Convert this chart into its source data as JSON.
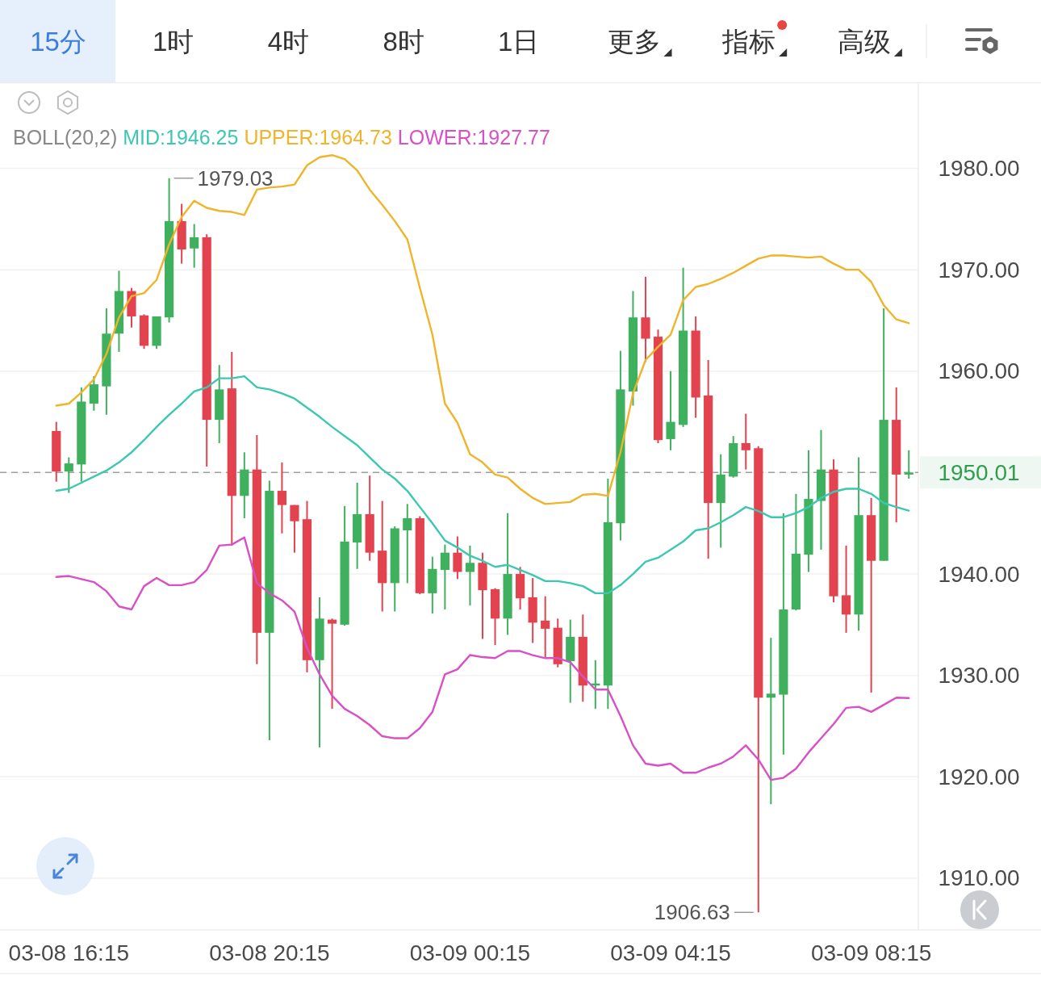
{
  "chart_data": {
    "type": "candlestick",
    "legend_title": "BOLL(20,2)",
    "legend": "top left",
    "grid": "y",
    "categories": [
      null,
      "03-08 16:15",
      null,
      null,
      null,
      null,
      null,
      null,
      null,
      null,
      null,
      null,
      null,
      null,
      null,
      null,
      null,
      "03-08 20:15",
      null,
      null,
      null,
      null,
      null,
      null,
      null,
      null,
      null,
      null,
      null,
      null,
      null,
      null,
      null,
      "03-09 00:15",
      null,
      null,
      null,
      null,
      null,
      null,
      null,
      null,
      null,
      null,
      null,
      null,
      null,
      null,
      null,
      "03-09 04:15",
      null,
      null,
      null,
      null,
      null,
      null,
      null,
      null,
      null,
      null,
      null,
      null,
      null,
      null,
      null,
      "03-09 08:15",
      null,
      null,
      null
    ],
    "ohlc": [
      [
        1954.1,
        1955.0,
        1949.1,
        1950.1
      ],
      [
        1950.1,
        1951.5,
        1948.0,
        1950.9
      ],
      [
        1950.8,
        1958.4,
        1949.1,
        1957.0
      ],
      [
        1956.8,
        1959.5,
        1956.1,
        1958.7
      ],
      [
        1958.5,
        1966.2,
        1955.7,
        1963.7
      ],
      [
        1963.7,
        1969.9,
        1961.9,
        1967.9
      ],
      [
        1967.9,
        1968.2,
        1964.3,
        1965.4
      ],
      [
        1965.5,
        1965.6,
        1962.2,
        1962.5
      ],
      [
        1962.5,
        1965.4,
        1962.2,
        1965.4
      ],
      [
        1965.3,
        1979.03,
        1964.8,
        1974.8
      ],
      [
        1974.8,
        1976.5,
        1970.6,
        1972.0
      ],
      [
        1972.1,
        1974.5,
        1970.2,
        1973.2
      ],
      [
        1973.2,
        1973.5,
        1950.6,
        1955.2
      ],
      [
        1955.2,
        1960.6,
        1952.9,
        1958.2
      ],
      [
        1958.3,
        1961.9,
        1942.8,
        1947.7
      ],
      [
        1947.7,
        1952.0,
        1945.5,
        1950.3
      ],
      [
        1950.3,
        1953.7,
        1931.1,
        1934.2
      ],
      [
        1934.2,
        1949.2,
        1923.6,
        1948.2
      ],
      [
        1948.2,
        1951.0,
        1944.0,
        1946.8
      ],
      [
        1946.8,
        1946.8,
        1942.1,
        1945.2
      ],
      [
        1945.4,
        1947.2,
        1930.3,
        1931.5
      ],
      [
        1931.5,
        1937.7,
        1922.9,
        1935.6
      ],
      [
        1935.5,
        1935.6,
        1926.7,
        1935.1
      ],
      [
        1935.0,
        1946.7,
        1934.9,
        1943.2
      ],
      [
        1943.1,
        1949.0,
        1940.5,
        1945.9
      ],
      [
        1945.9,
        1949.7,
        1941.3,
        1942.1
      ],
      [
        1942.3,
        1947.2,
        1936.3,
        1939.1
      ],
      [
        1939.1,
        1944.7,
        1936.3,
        1944.5
      ],
      [
        1944.3,
        1946.9,
        1939.1,
        1945.5
      ],
      [
        1945.5,
        1945.7,
        1938.0,
        1938.1
      ],
      [
        1938.1,
        1941.7,
        1936.1,
        1940.5
      ],
      [
        1940.4,
        1942.9,
        1936.5,
        1942.1
      ],
      [
        1942.1,
        1943.7,
        1939.5,
        1940.2
      ],
      [
        1940.2,
        1942.8,
        1936.9,
        1941.1
      ],
      [
        1941.1,
        1942.1,
        1933.6,
        1938.4
      ],
      [
        1938.5,
        1938.6,
        1933.0,
        1935.6
      ],
      [
        1935.6,
        1946.0,
        1934.0,
        1940.0
      ],
      [
        1940.0,
        1940.7,
        1936.5,
        1937.6
      ],
      [
        1937.7,
        1939.6,
        1933.2,
        1935.2
      ],
      [
        1935.4,
        1937.8,
        1931.8,
        1934.6
      ],
      [
        1934.7,
        1935.6,
        1930.8,
        1931.1
      ],
      [
        1931.4,
        1935.5,
        1927.3,
        1933.8
      ],
      [
        1933.8,
        1936.0,
        1927.4,
        1929.0
      ],
      [
        1929.0,
        1931.5,
        1926.7,
        1929.2
      ],
      [
        1929.0,
        1949.4,
        1926.7,
        1945.1
      ],
      [
        1945.0,
        1962.0,
        1943.3,
        1958.2
      ],
      [
        1958.0,
        1967.9,
        1956.6,
        1965.3
      ],
      [
        1965.3,
        1969.3,
        1960.9,
        1963.2
      ],
      [
        1963.4,
        1964.1,
        1952.9,
        1953.2
      ],
      [
        1953.3,
        1960.0,
        1952.2,
        1955.0
      ],
      [
        1954.7,
        1970.2,
        1954.5,
        1964.0
      ],
      [
        1964.0,
        1965.4,
        1955.4,
        1957.4
      ],
      [
        1957.6,
        1961.1,
        1941.5,
        1947.0
      ],
      [
        1947.0,
        1951.8,
        1942.6,
        1949.8
      ],
      [
        1949.6,
        1953.6,
        1949.5,
        1952.9
      ],
      [
        1952.9,
        1955.8,
        1950.3,
        1952.2
      ],
      [
        1952.4,
        1952.6,
        1906.63,
        1927.8
      ],
      [
        1927.8,
        1933.7,
        1917.3,
        1928.2
      ],
      [
        1928.1,
        1946.0,
        1922.2,
        1936.5
      ],
      [
        1936.5,
        1947.9,
        1936.4,
        1942.0
      ],
      [
        1941.9,
        1952.2,
        1940.2,
        1947.4
      ],
      [
        1947.2,
        1954.2,
        1942.4,
        1950.3
      ],
      [
        1950.3,
        1951.3,
        1937.2,
        1937.8
      ],
      [
        1937.9,
        1942.8,
        1934.2,
        1936.0
      ],
      [
        1936.0,
        1951.5,
        1934.4,
        1945.8
      ],
      [
        1945.8,
        1947.5,
        1928.3,
        1941.3
      ],
      [
        1941.3,
        1966.2,
        1941.3,
        1955.2
      ],
      [
        1955.2,
        1958.4,
        1945.1,
        1949.8
      ],
      [
        1949.8,
        1952.2,
        1949.4,
        1950.01
      ]
    ],
    "colors": [
      "#e2434f",
      "#3fb15e",
      "#3fb15e",
      "#3fb15e",
      "#3fb15e",
      "#3fb15e",
      "#e2434f",
      "#e2434f",
      "#3fb15e",
      "#3fb15e",
      "#e2434f",
      "#3fb15e",
      "#e2434f",
      "#3fb15e",
      "#e2434f",
      "#3fb15e",
      "#e2434f",
      "#3fb15e",
      "#e2434f",
      "#e2434f",
      "#e2434f",
      "#3fb15e",
      "#e2434f",
      "#3fb15e",
      "#3fb15e",
      "#e2434f",
      "#e2434f",
      "#3fb15e",
      "#3fb15e",
      "#e2434f",
      "#3fb15e",
      "#3fb15e",
      "#e2434f",
      "#3fb15e",
      "#e2434f",
      "#e2434f",
      "#3fb15e",
      "#e2434f",
      "#e2434f",
      "#e2434f",
      "#e2434f",
      "#3fb15e",
      "#e2434f",
      "#3fb15e",
      "#3fb15e",
      "#3fb15e",
      "#3fb15e",
      "#e2434f",
      "#e2434f",
      "#3fb15e",
      "#3fb15e",
      "#e2434f",
      "#e2434f",
      "#3fb15e",
      "#3fb15e",
      "#e2434f",
      "#e2434f",
      "#3fb15e",
      "#3fb15e",
      "#3fb15e",
      "#3fb15e",
      "#3fb15e",
      "#e2434f",
      "#e2434f",
      "#3fb15e",
      "#e2434f",
      "#3fb15e",
      "#e2434f",
      "#3fb15e"
    ],
    "series": [
      {
        "name": "MID:1946.25",
        "type": "line",
        "color": "#3cc8b0",
        "values": [
          1948.2,
          1948.4,
          1949.0,
          1949.6,
          1950.2,
          1951.0,
          1952.0,
          1953.2,
          1954.5,
          1955.7,
          1956.8,
          1958.0,
          1958.4,
          1959.3,
          1959.3,
          1959.5,
          1958.4,
          1958.2,
          1957.8,
          1957.3,
          1956.4,
          1955.5,
          1954.5,
          1953.6,
          1952.7,
          1951.5,
          1950.3,
          1949.4,
          1948.2,
          1946.6,
          1945.0,
          1943.3,
          1942.6,
          1941.8,
          1941.3,
          1940.7,
          1940.9,
          1940.4,
          1939.9,
          1939.3,
          1939.3,
          1939.1,
          1938.8,
          1938.1,
          1938.1,
          1938.9,
          1940.0,
          1941.2,
          1941.6,
          1942.4,
          1943.2,
          1944.3,
          1944.5,
          1945.1,
          1945.8,
          1946.6,
          1946.2,
          1945.6,
          1945.6,
          1946.0,
          1946.6,
          1947.5,
          1948.1,
          1948.4,
          1948.4,
          1947.9,
          1947.0,
          1946.6,
          1946.25
        ]
      },
      {
        "name": "UPPER:1964.73",
        "type": "line",
        "color": "#f0b42a",
        "values": [
          1956.6,
          1956.8,
          1957.9,
          1959.2,
          1961.7,
          1965.3,
          1967.4,
          1967.7,
          1969.0,
          1972.5,
          1975.2,
          1976.8,
          1976.1,
          1975.8,
          1975.7,
          1975.4,
          1977.9,
          1978.1,
          1978.2,
          1978.4,
          1980.3,
          1981.1,
          1981.3,
          1980.9,
          1979.8,
          1977.9,
          1976.4,
          1974.8,
          1973.0,
          1968.2,
          1963.6,
          1956.8,
          1954.9,
          1951.8,
          1951.0,
          1949.8,
          1949.5,
          1948.4,
          1947.5,
          1946.9,
          1947.0,
          1947.1,
          1947.8,
          1947.9,
          1947.7,
          1952.0,
          1957.8,
          1961.1,
          1962.4,
          1963.6,
          1967.0,
          1968.3,
          1968.6,
          1969.1,
          1969.7,
          1970.4,
          1971.1,
          1971.4,
          1971.4,
          1971.3,
          1971.2,
          1971.3,
          1970.6,
          1970.0,
          1970.0,
          1968.8,
          1966.5,
          1965.1,
          1964.73
        ]
      },
      {
        "name": "LOWER:1927.77",
        "type": "line",
        "color": "#d94fc6",
        "values": [
          1939.7,
          1939.8,
          1939.5,
          1939.2,
          1938.3,
          1936.8,
          1936.5,
          1938.8,
          1939.6,
          1938.9,
          1938.9,
          1939.2,
          1940.4,
          1942.8,
          1942.9,
          1943.6,
          1939.1,
          1938.1,
          1937.4,
          1936.3,
          1932.7,
          1930.1,
          1928.0,
          1926.7,
          1926.0,
          1925.1,
          1924.0,
          1923.8,
          1923.8,
          1924.8,
          1926.4,
          1930.1,
          1930.6,
          1932.0,
          1931.8,
          1931.7,
          1932.4,
          1932.4,
          1932.0,
          1931.7,
          1931.7,
          1931.3,
          1929.9,
          1928.6,
          1928.6,
          1926.0,
          1923.1,
          1921.3,
          1921.1,
          1921.3,
          1920.4,
          1920.4,
          1920.9,
          1921.3,
          1922.0,
          1923.1,
          1921.7,
          1919.7,
          1919.9,
          1920.8,
          1922.4,
          1923.8,
          1925.2,
          1926.8,
          1926.9,
          1926.4,
          1927.1,
          1927.8,
          1927.77
        ]
      }
    ],
    "ylim": [
      1904.9,
      1988.4
    ],
    "yticks": [
      {
        "value": 1910,
        "label": "1910.00"
      },
      {
        "value": 1920,
        "label": "1920.00"
      },
      {
        "value": 1930,
        "label": "1930.00"
      },
      {
        "value": 1940,
        "label": "1940.00"
      },
      {
        "value": 1950,
        "label": null
      },
      {
        "value": 1960,
        "label": "1960.00"
      },
      {
        "value": 1970,
        "label": "1970.00"
      },
      {
        "value": 1980,
        "label": "1980.00"
      }
    ],
    "ref_lines": [
      {
        "axis": "y",
        "value": 1950.01,
        "color": "#a0a0a0",
        "line_style": "dashed"
      }
    ],
    "annotations": [
      "15分",
      "1时",
      "4时",
      "8时",
      "1日",
      "更多",
      "指标",
      "高级",
      "1979.03",
      "1906.63",
      "1950.01"
    ]
  }
}
